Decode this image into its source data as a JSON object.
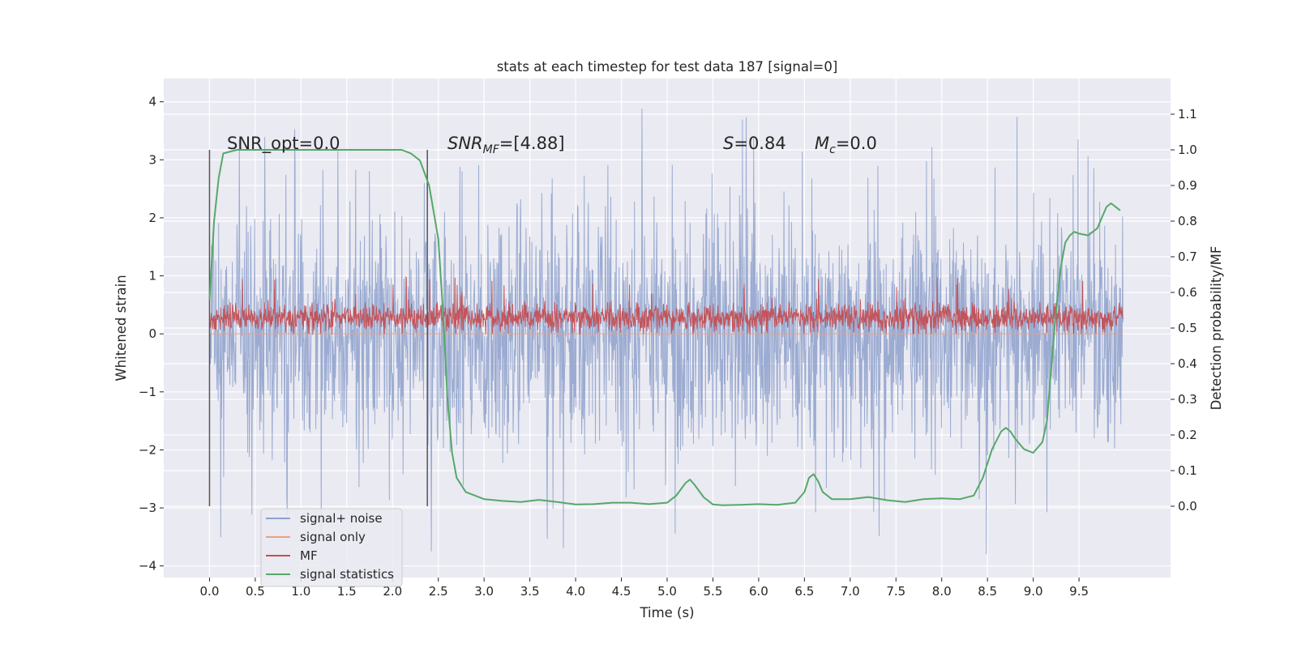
{
  "chart_data": {
    "type": "line",
    "title": "stats at each timestep for test data 187 [signal=0]",
    "xlabel": "Time (s)",
    "ylabel": "Whitened strain",
    "ylabel_right": "Detection probability/MF",
    "xlim": [
      -0.5,
      10.5
    ],
    "ylim": [
      -4.2,
      4.4
    ],
    "ylim_right": [
      -0.2,
      1.2
    ],
    "x_ticks": [
      "0.0",
      "0.5",
      "1.0",
      "1.5",
      "2.0",
      "2.5",
      "3.0",
      "3.5",
      "4.0",
      "4.5",
      "5.0",
      "5.5",
      "6.0",
      "6.5",
      "7.0",
      "7.5",
      "8.0",
      "8.5",
      "9.0",
      "9.5"
    ],
    "y_ticks": [
      "−4",
      "−3",
      "−2",
      "−1",
      "0",
      "1",
      "2",
      "3",
      "4"
    ],
    "y_ticks_right": [
      "0.0",
      "0.1",
      "0.2",
      "0.3",
      "0.4",
      "0.5",
      "0.6",
      "0.7",
      "0.8",
      "0.9",
      "1.0",
      "1.1"
    ],
    "grid": true,
    "legend_position": "lower-left",
    "series": [
      {
        "name": "signal+ noise",
        "color": "#8da0cb",
        "axis": "left",
        "x_range": [
          0,
          9.98
        ],
        "approx_range": [
          -3.8,
          4.0
        ]
      },
      {
        "name": "signal only",
        "color": "#e9a085",
        "axis": "left",
        "values": "zero"
      },
      {
        "name": "MF",
        "color": "#c44e52",
        "axis": "left",
        "x_range": [
          0,
          9.98
        ],
        "approx_range": [
          0,
          1.0
        ]
      },
      {
        "name": "signal statistics",
        "color": "#55a868",
        "axis": "right",
        "x": [
          0,
          0.05,
          0.1,
          0.15,
          0.3,
          0.5,
          1.0,
          1.5,
          2.0,
          2.1,
          2.2,
          2.3,
          2.4,
          2.5,
          2.55,
          2.6,
          2.65,
          2.7,
          2.8,
          2.9,
          3.0,
          3.2,
          3.4,
          3.6,
          3.8,
          4.0,
          4.2,
          4.4,
          4.6,
          4.8,
          5.0,
          5.1,
          5.2,
          5.25,
          5.3,
          5.4,
          5.5,
          5.6,
          5.8,
          6.0,
          6.2,
          6.4,
          6.5,
          6.55,
          6.6,
          6.65,
          6.7,
          6.8,
          7.0,
          7.2,
          7.4,
          7.6,
          7.8,
          8.0,
          8.2,
          8.35,
          8.45,
          8.55,
          8.65,
          8.7,
          8.75,
          8.8,
          8.9,
          9.0,
          9.1,
          9.15,
          9.2,
          9.25,
          9.3,
          9.35,
          9.4,
          9.45,
          9.5,
          9.6,
          9.7,
          9.75,
          9.8,
          9.85,
          9.9,
          9.95
        ],
        "values": [
          0.58,
          0.8,
          0.92,
          0.99,
          1.0,
          1.0,
          1.0,
          1.0,
          1.0,
          1.0,
          0.99,
          0.97,
          0.9,
          0.75,
          0.55,
          0.3,
          0.15,
          0.08,
          0.04,
          0.03,
          0.02,
          0.015,
          0.012,
          0.018,
          0.012,
          0.005,
          0.006,
          0.01,
          0.01,
          0.006,
          0.01,
          0.03,
          0.065,
          0.075,
          0.06,
          0.025,
          0.005,
          0.003,
          0.004,
          0.006,
          0.004,
          0.01,
          0.04,
          0.08,
          0.09,
          0.07,
          0.04,
          0.02,
          0.02,
          0.026,
          0.017,
          0.012,
          0.02,
          0.022,
          0.02,
          0.03,
          0.08,
          0.16,
          0.21,
          0.22,
          0.21,
          0.19,
          0.16,
          0.15,
          0.18,
          0.24,
          0.4,
          0.55,
          0.67,
          0.74,
          0.76,
          0.77,
          0.765,
          0.76,
          0.78,
          0.81,
          0.84,
          0.85,
          0.84,
          0.83
        ]
      }
    ],
    "vlines": [
      0.0,
      2.38
    ],
    "annotations": [
      {
        "type": "snr_opt",
        "text": "SNR_opt=0.0"
      },
      {
        "type": "snr_mf",
        "base": "SNR",
        "sub": "MF",
        "tail": "=[4.88]"
      },
      {
        "type": "s",
        "base": "S",
        "tail": "=0.84"
      },
      {
        "type": "mc",
        "base": "M",
        "sub": "c",
        "tail": "=0.0"
      }
    ]
  }
}
